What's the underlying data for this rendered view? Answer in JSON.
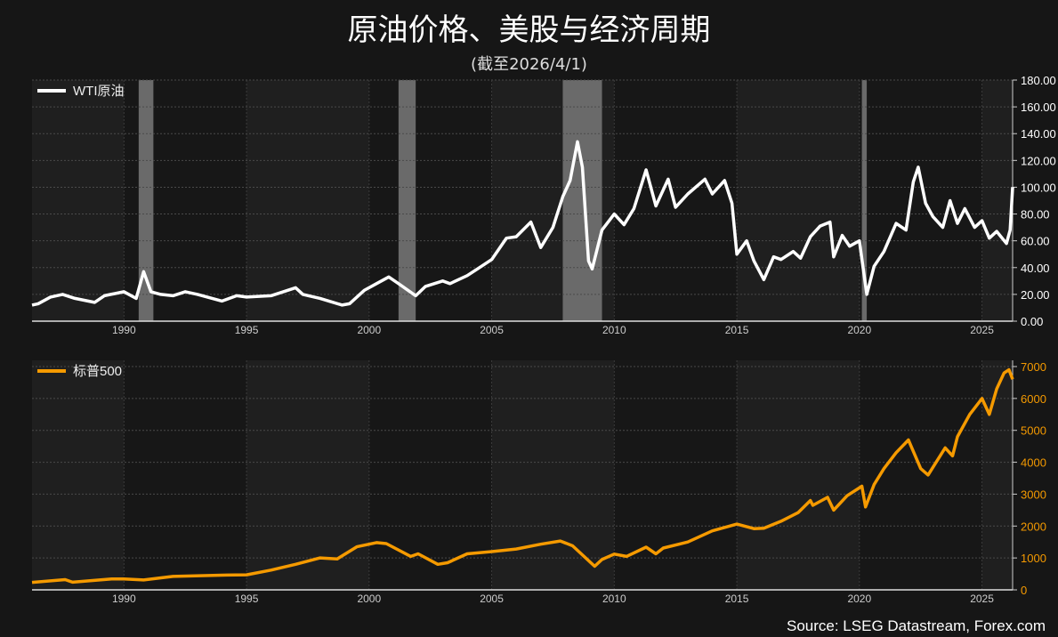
{
  "title": "原油价格、美股与经济周期",
  "subtitle": "(截至2026/4/1)",
  "source": "Source: LSEG Datastream, Forex.com",
  "chart_data": [
    {
      "type": "line",
      "legend": "WTI原油",
      "legend_position": "top-left",
      "color": "#ffffff",
      "tick_color": "#ffffff",
      "xlim": [
        1986.25,
        2026.25
      ],
      "ylim": [
        0,
        180
      ],
      "yticks": [
        "0.00",
        "20.00",
        "40.00",
        "60.00",
        "80.00",
        "100.00",
        "120.00",
        "140.00",
        "160.00",
        "180.00"
      ],
      "xticks": [
        "1990",
        "1995",
        "2000",
        "2005",
        "2010",
        "2015",
        "2020",
        "2025"
      ],
      "grid": true,
      "recession_shading": [
        [
          1990.6,
          1991.2
        ],
        [
          2001.2,
          2001.9
        ],
        [
          2007.9,
          2009.5
        ],
        [
          2020.1,
          2020.3
        ]
      ],
      "series": [
        {
          "x": [
            1986.25,
            1986.5,
            1987,
            1987.5,
            1988,
            1988.8,
            1989.2,
            1990,
            1990.5,
            1990.8,
            1991.1,
            1991.5,
            1992,
            1992.5,
            1993,
            1993.8,
            1994,
            1994.6,
            1995,
            1996,
            1996.5,
            1997,
            1997.3,
            1998,
            1998.9,
            1999.2,
            1999.8,
            2000.3,
            2000.8,
            2001.2,
            2001.9,
            2002.3,
            2003,
            2003.3,
            2004,
            2004.5,
            2005,
            2005.6,
            2006,
            2006.6,
            2007,
            2007.5,
            2007.9,
            2008.2,
            2008.5,
            2008.7,
            2008.95,
            2009.1,
            2009.5,
            2010,
            2010.4,
            2010.8,
            2011.3,
            2011.7,
            2012.2,
            2012.5,
            2013,
            2013.7,
            2014,
            2014.5,
            2014.8,
            2015,
            2015.4,
            2015.7,
            2016.1,
            2016.5,
            2016.8,
            2017.3,
            2017.6,
            2018,
            2018.4,
            2018.8,
            2018.95,
            2019.3,
            2019.6,
            2020,
            2020.3,
            2020.6,
            2021,
            2021.5,
            2021.9,
            2022.2,
            2022.4,
            2022.7,
            2023,
            2023.4,
            2023.7,
            2024,
            2024.3,
            2024.7,
            2025,
            2025.3,
            2025.6,
            2026,
            2026.15,
            2026.25
          ],
          "y": [
            12,
            13,
            18,
            20,
            17,
            14,
            19,
            22,
            17,
            37,
            22,
            20,
            19,
            22,
            20,
            16,
            15,
            19,
            18,
            19,
            22,
            25,
            20,
            17,
            12,
            13,
            23,
            28,
            33,
            28,
            19,
            26,
            30,
            28,
            34,
            40,
            46,
            62,
            63,
            74,
            55,
            70,
            93,
            105,
            134,
            115,
            45,
            39,
            68,
            80,
            72,
            84,
            113,
            86,
            106,
            85,
            95,
            106,
            95,
            105,
            88,
            50,
            60,
            45,
            31,
            48,
            46,
            52,
            47,
            63,
            71,
            74,
            48,
            64,
            56,
            60,
            20,
            41,
            52,
            73,
            68,
            104,
            115,
            88,
            78,
            70,
            90,
            73,
            84,
            70,
            75,
            62,
            67,
            58,
            68,
            100
          ]
        }
      ]
    },
    {
      "type": "line",
      "legend": "标普500",
      "legend_position": "top-left",
      "color": "#f59a00",
      "tick_color": "#f59a00",
      "xlim": [
        1986.25,
        2026.25
      ],
      "ylim": [
        0,
        7000
      ],
      "yticks": [
        "0",
        "1000",
        "2000",
        "3000",
        "4000",
        "5000",
        "6000",
        "7000"
      ],
      "xticks": [
        "1990",
        "1995",
        "2000",
        "2005",
        "2010",
        "2015",
        "2020",
        "2025"
      ],
      "grid": true,
      "series": [
        {
          "x": [
            1986.25,
            1987.6,
            1987.9,
            1989.5,
            1990,
            1990.8,
            1992,
            1994,
            1995,
            1996,
            1997,
            1998,
            1998.7,
            1999.5,
            2000.3,
            2000.7,
            2001.7,
            2002,
            2002.8,
            2003.2,
            2004,
            2005,
            2006,
            2007,
            2007.8,
            2008.3,
            2009.2,
            2009.5,
            2010,
            2010.5,
            2011.3,
            2011.7,
            2012,
            2013,
            2014,
            2015,
            2015.7,
            2016.1,
            2016.8,
            2017.5,
            2018,
            2018.1,
            2018.7,
            2018.95,
            2019.5,
            2020.1,
            2020.25,
            2020.6,
            2021,
            2021.5,
            2022,
            2022.5,
            2022.8,
            2023.5,
            2023.8,
            2024,
            2024.5,
            2025,
            2025.3,
            2025.6,
            2025.9,
            2026.1,
            2026.25
          ],
          "y": [
            235,
            320,
            240,
            340,
            340,
            310,
            420,
            460,
            470,
            620,
            800,
            1000,
            970,
            1350,
            1480,
            1450,
            1050,
            1130,
            800,
            850,
            1130,
            1200,
            1280,
            1430,
            1530,
            1380,
            740,
            950,
            1120,
            1050,
            1340,
            1130,
            1310,
            1500,
            1850,
            2060,
            1920,
            1930,
            2150,
            2420,
            2800,
            2650,
            2900,
            2500,
            2950,
            3250,
            2600,
            3300,
            3800,
            4300,
            4700,
            3800,
            3600,
            4450,
            4200,
            4800,
            5500,
            6000,
            5500,
            6300,
            6800,
            6900,
            6600
          ]
        }
      ]
    }
  ]
}
